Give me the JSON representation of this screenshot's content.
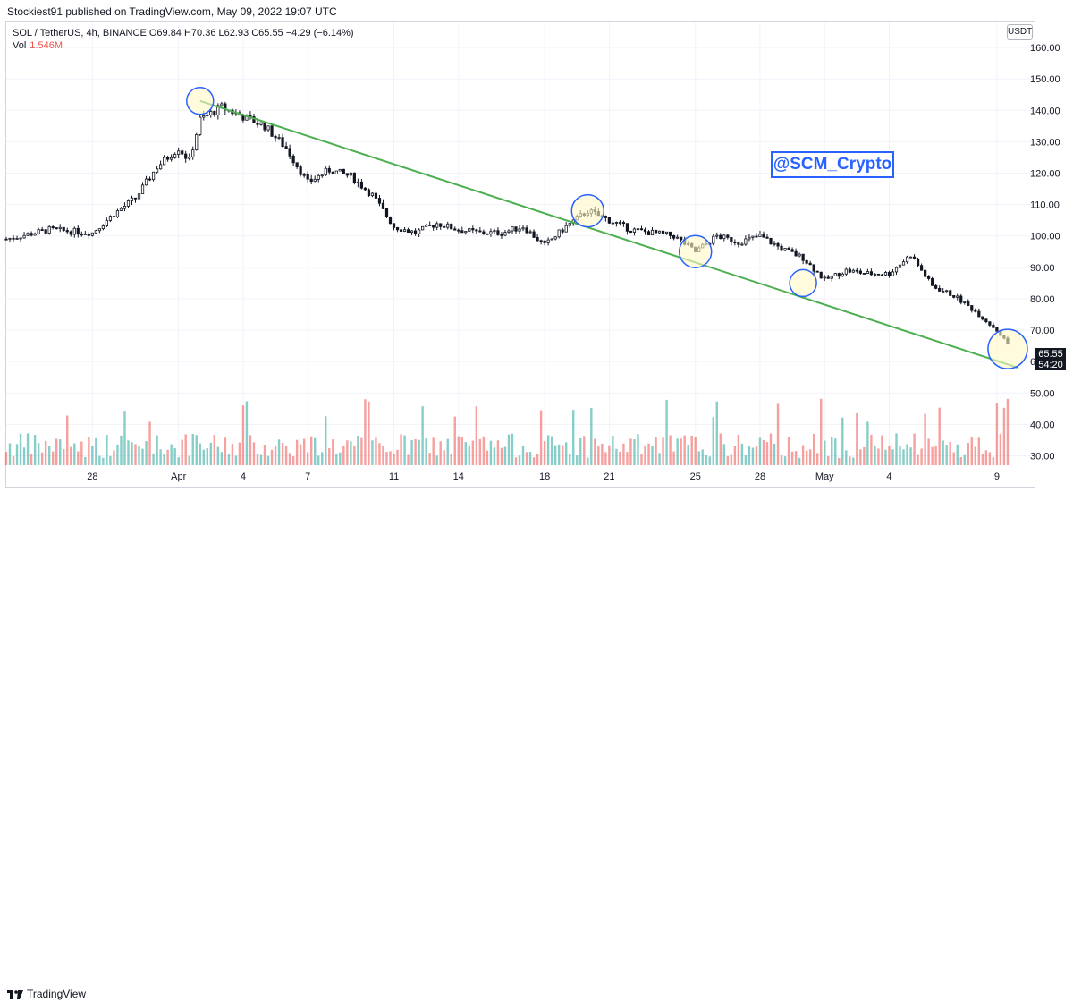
{
  "header": {
    "published_by": "Stockiest91 published on TradingView.com, May 09, 2022 19:07 UTC"
  },
  "legend": {
    "symbol_line": "SOL / TetherUS, 4h, BINANCE  O69.84  H70.36  L62.93  C65.55  −4.29 (−6.14%)",
    "vol_label": "Vol",
    "vol_value": "1.546M"
  },
  "currency_badge": "USDT",
  "watermark": "@SCM_Crypto",
  "price_label": {
    "price": "65.55",
    "countdown": "54:20"
  },
  "brand": "TradingView",
  "colors": {
    "up": "#26a69a",
    "down": "#ef5350",
    "trendline": "#4caf50",
    "highlight_fill": "#fff9c4",
    "highlight_stroke": "#2962ff"
  },
  "chart_data": {
    "type": "candlestick",
    "symbol": "SOL / TetherUS",
    "interval": "4h",
    "exchange": "BINANCE",
    "ylim": [
      27,
      168
    ],
    "y_ticks": [
      30,
      40,
      50,
      60,
      70,
      80,
      90,
      100,
      110,
      120,
      130,
      140,
      150,
      160
    ],
    "x_ticks": [
      {
        "label": "28",
        "date": "2022-03-28"
      },
      {
        "label": "Apr",
        "date": "2022-04-01"
      },
      {
        "label": "4",
        "date": "2022-04-04"
      },
      {
        "label": "7",
        "date": "2022-04-07"
      },
      {
        "label": "11",
        "date": "2022-04-11"
      },
      {
        "label": "14",
        "date": "2022-04-14"
      },
      {
        "label": "18",
        "date": "2022-04-18"
      },
      {
        "label": "21",
        "date": "2022-04-21"
      },
      {
        "label": "25",
        "date": "2022-04-25"
      },
      {
        "label": "28",
        "date": "2022-04-28"
      },
      {
        "label": "May",
        "date": "2022-05-01"
      },
      {
        "label": "4",
        "date": "2022-05-04"
      },
      {
        "label": "9",
        "date": "2022-05-09"
      }
    ],
    "price_path": [
      [
        "2022-03-24",
        99
      ],
      [
        "2022-03-26",
        102
      ],
      [
        "2022-03-28",
        101
      ],
      [
        "2022-03-29",
        107
      ],
      [
        "2022-03-30",
        112
      ],
      [
        "2022-03-31",
        122
      ],
      [
        "2022-04-01",
        128
      ],
      [
        "2022-04-01T12",
        124
      ],
      [
        "2022-04-02",
        137
      ],
      [
        "2022-04-03",
        141
      ],
      [
        "2022-04-04",
        138
      ],
      [
        "2022-04-05",
        135
      ],
      [
        "2022-04-06",
        128
      ],
      [
        "2022-04-07",
        117
      ],
      [
        "2022-04-08",
        121
      ],
      [
        "2022-04-09",
        119
      ],
      [
        "2022-04-10",
        113
      ],
      [
        "2022-04-11",
        103
      ],
      [
        "2022-04-12",
        101
      ],
      [
        "2022-04-13",
        104
      ],
      [
        "2022-04-14",
        102
      ],
      [
        "2022-04-15",
        101
      ],
      [
        "2022-04-16",
        101
      ],
      [
        "2022-04-17",
        103
      ],
      [
        "2022-04-18",
        97
      ],
      [
        "2022-04-19",
        103
      ],
      [
        "2022-04-20",
        108
      ],
      [
        "2022-04-21",
        105
      ],
      [
        "2022-04-22",
        102
      ],
      [
        "2022-04-23",
        101
      ],
      [
        "2022-04-24",
        100
      ],
      [
        "2022-04-25",
        95
      ],
      [
        "2022-04-26",
        100
      ],
      [
        "2022-04-27",
        98
      ],
      [
        "2022-04-28",
        100
      ],
      [
        "2022-04-29",
        96
      ],
      [
        "2022-04-30",
        93
      ],
      [
        "2022-05-01",
        86
      ],
      [
        "2022-05-02",
        89
      ],
      [
        "2022-05-03",
        88
      ],
      [
        "2022-05-04",
        88
      ],
      [
        "2022-05-05",
        94
      ],
      [
        "2022-05-06",
        84
      ],
      [
        "2022-05-07",
        81
      ],
      [
        "2022-05-08",
        76
      ],
      [
        "2022-05-09",
        70
      ],
      [
        "2022-05-09T12",
        65.55
      ]
    ],
    "trendline": {
      "from": [
        "2022-04-02",
        143
      ],
      "to": [
        "2022-05-10",
        58
      ]
    },
    "highlight_circles": [
      [
        "2022-04-02",
        143
      ],
      [
        "2022-04-20",
        108
      ],
      [
        "2022-04-25",
        95
      ],
      [
        "2022-04-30",
        85
      ],
      [
        "2022-05-09T12",
        64
      ]
    ],
    "volume": {
      "last": "1.546M"
    }
  }
}
